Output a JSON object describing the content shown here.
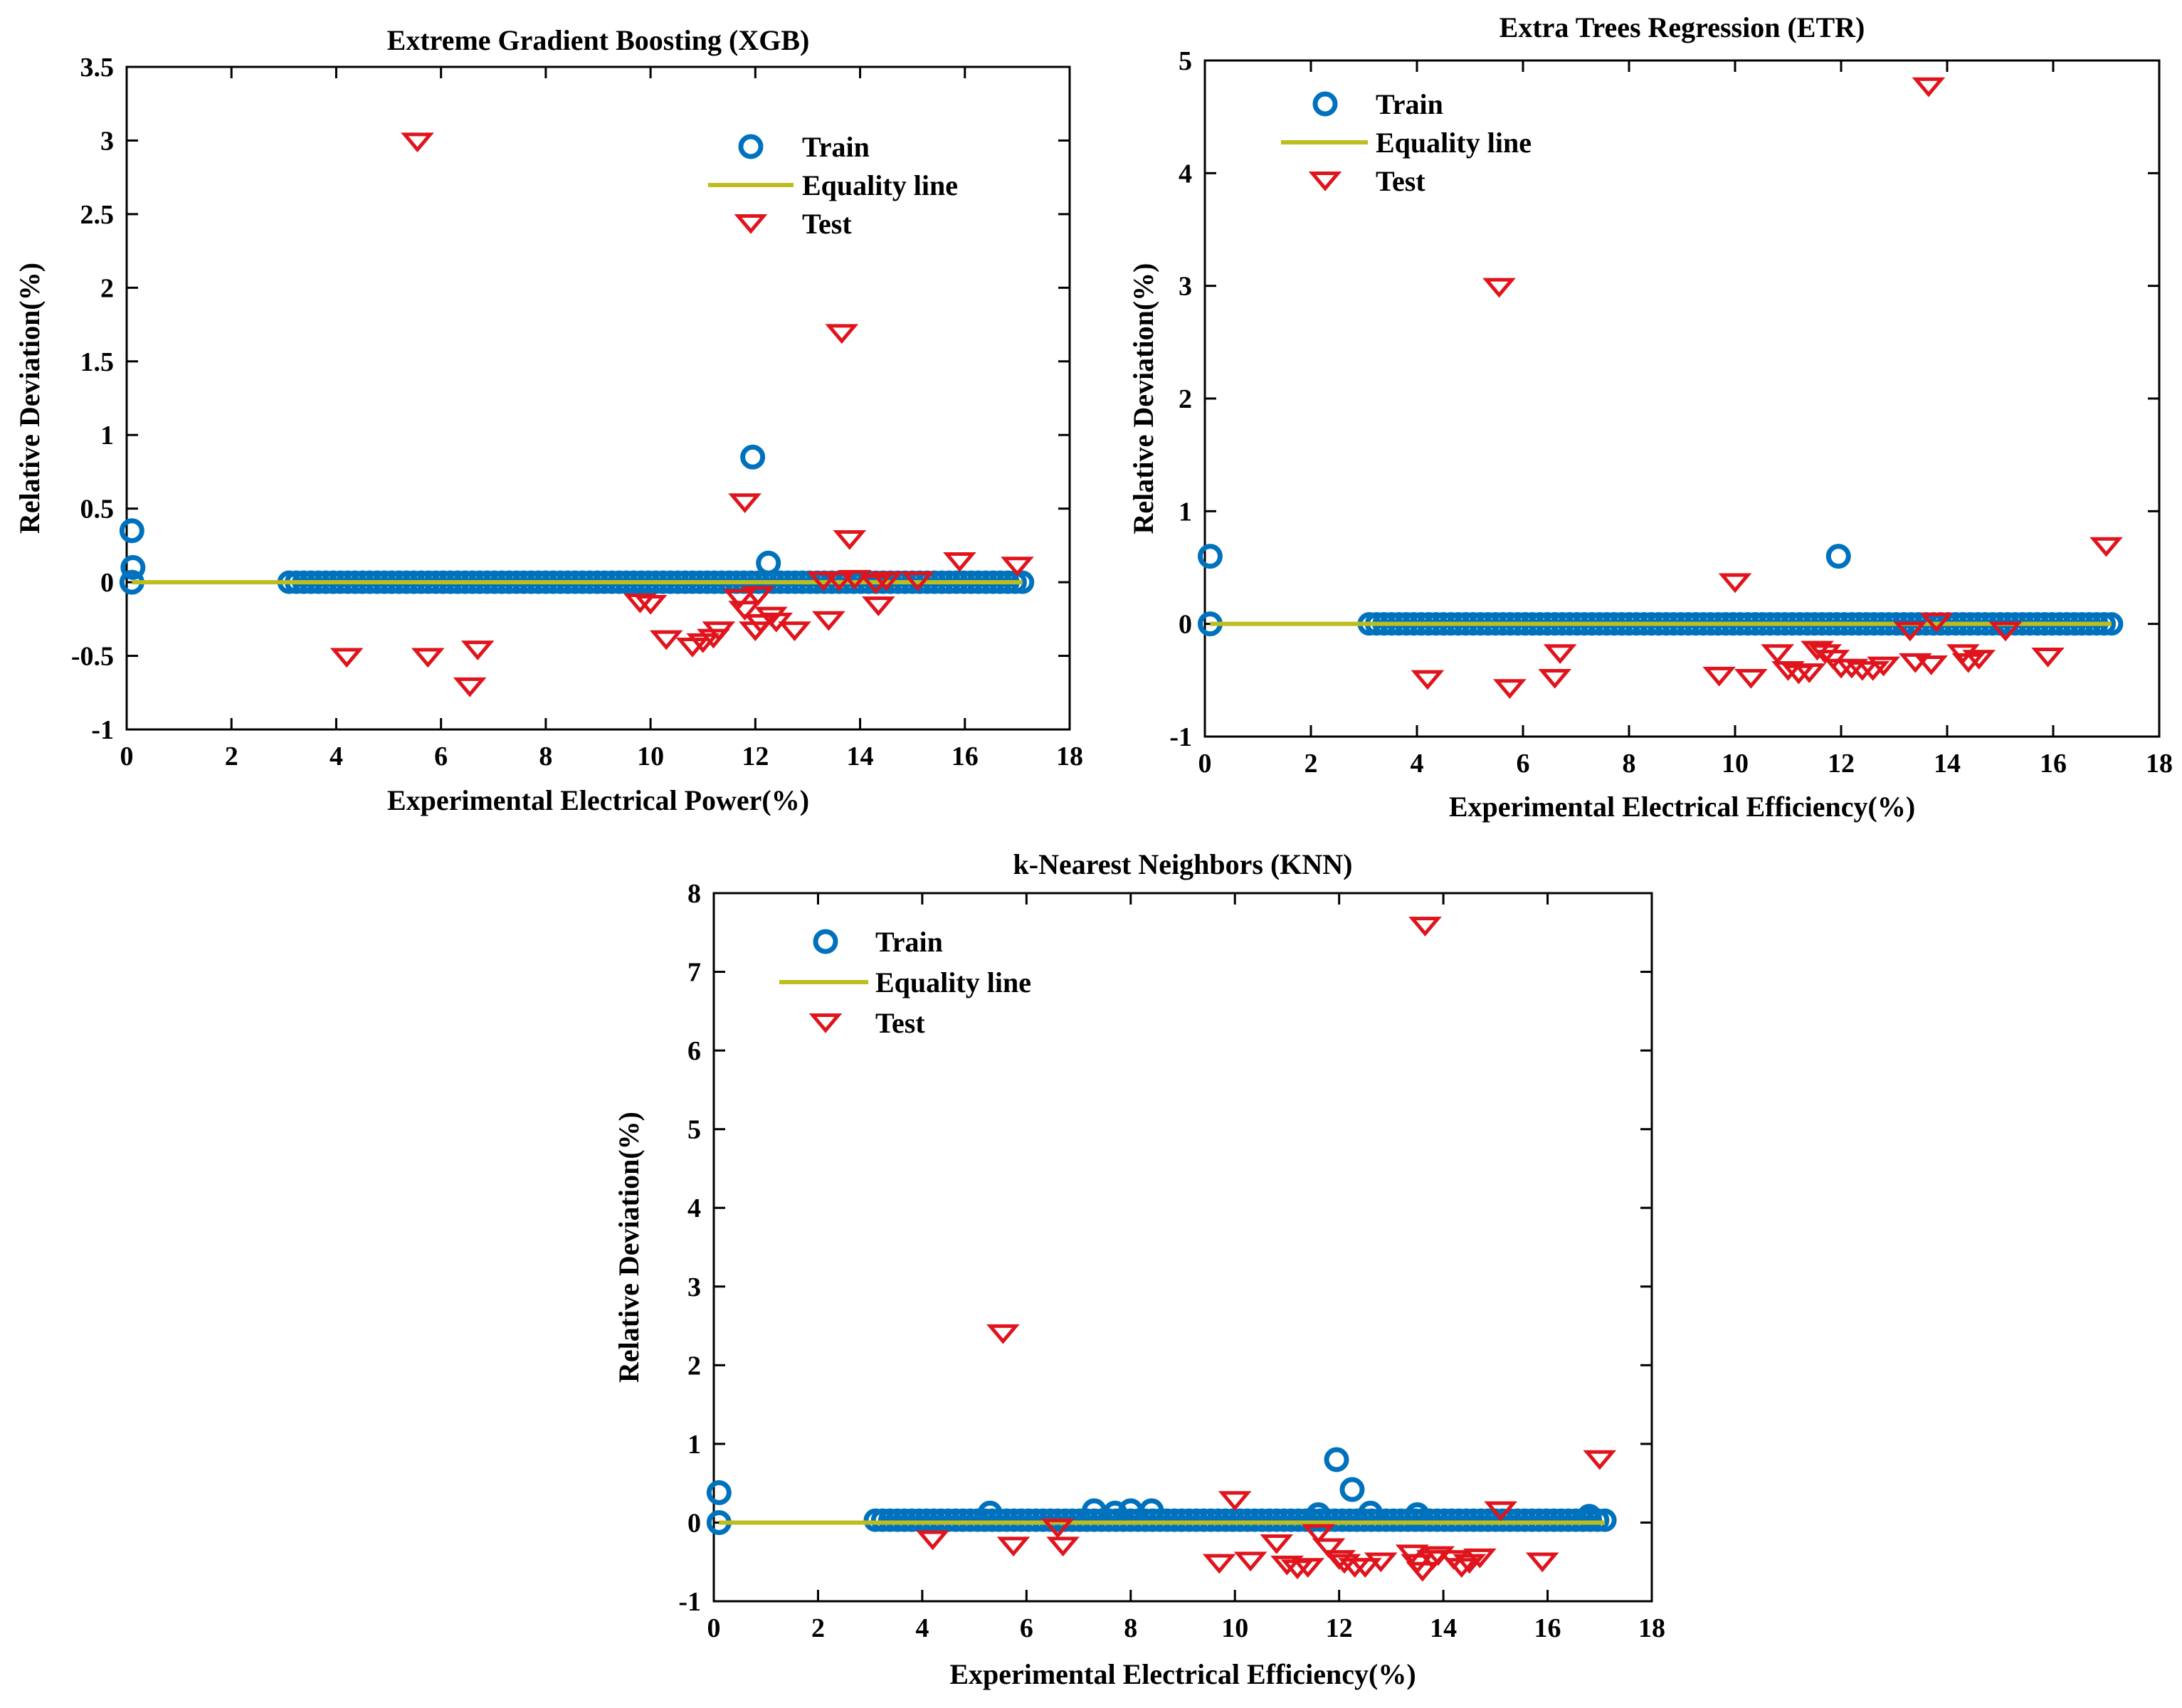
{
  "colors": {
    "train": "#0072BD",
    "equality": "#BDBD1F",
    "test": "#E0141C"
  },
  "chart_data": [
    {
      "type": "scatter",
      "title": "Extreme Gradient Boosting (XGB)",
      "xlabel": "Experimental Electrical Power(%)",
      "ylabel": "Relative Deviation(%)",
      "xlim": [
        0,
        18
      ],
      "ylim": [
        -1,
        3.5
      ],
      "xticks": [
        0,
        2,
        4,
        6,
        8,
        10,
        12,
        14,
        16,
        18
      ],
      "yticks": [
        -1,
        -0.5,
        0,
        0.5,
        1,
        1.5,
        2,
        2.5,
        3,
        3.5
      ],
      "xtick_labels": [
        "0",
        "2",
        "4",
        "6",
        "8",
        "10",
        "12",
        "14",
        "16",
        "18"
      ],
      "ytick_labels": [
        "-1",
        "-0.5",
        "0",
        "0.5",
        "1",
        "1.5",
        "2",
        "2.5",
        "3",
        "3.5"
      ],
      "legend": [
        "Train",
        "Equality line",
        "Test"
      ],
      "legend_position": "top-right",
      "equality_line": {
        "x": [
          0.1,
          17.1
        ],
        "y": [
          0,
          0
        ]
      },
      "train_band": {
        "x": [
          3.1,
          17.1
        ],
        "step": 0.14,
        "y": 0
      },
      "series": [
        {
          "name": "Train",
          "marker": "circle",
          "points": [
            [
              0.1,
              0.35
            ],
            [
              0.12,
              0.1
            ],
            [
              0.1,
              0.0
            ],
            [
              11.95,
              0.85
            ],
            [
              12.25,
              0.13
            ]
          ]
        },
        {
          "name": "Test",
          "marker": "triangle-down",
          "points": [
            [
              5.55,
              3.0
            ],
            [
              13.65,
              1.7
            ],
            [
              11.8,
              0.55
            ],
            [
              13.8,
              0.3
            ],
            [
              15.9,
              0.15
            ],
            [
              17.0,
              0.12
            ],
            [
              13.3,
              0.02
            ],
            [
              13.9,
              0.03
            ],
            [
              14.3,
              0.0
            ],
            [
              14.5,
              0.02
            ],
            [
              15.1,
              0.02
            ],
            [
              13.6,
              0.02
            ],
            [
              11.7,
              -0.1
            ],
            [
              12.05,
              -0.08
            ],
            [
              11.8,
              -0.18
            ],
            [
              12.3,
              -0.22
            ],
            [
              12.1,
              -0.27
            ],
            [
              12.4,
              -0.26
            ],
            [
              11.3,
              -0.32
            ],
            [
              12.0,
              -0.32
            ],
            [
              12.75,
              -0.32
            ],
            [
              13.4,
              -0.25
            ],
            [
              14.35,
              -0.15
            ],
            [
              9.8,
              -0.13
            ],
            [
              10.0,
              -0.14
            ],
            [
              10.3,
              -0.38
            ],
            [
              10.8,
              -0.43
            ],
            [
              11.0,
              -0.4
            ],
            [
              11.2,
              -0.37
            ],
            [
              4.2,
              -0.5
            ],
            [
              5.75,
              -0.5
            ],
            [
              6.7,
              -0.45
            ],
            [
              6.55,
              -0.7
            ]
          ]
        }
      ]
    },
    {
      "type": "scatter",
      "title": "Extra Trees Regression (ETR)",
      "xlabel": "Experimental Electrical Efficiency(%)",
      "ylabel": "Relative Deviation(%)",
      "xlim": [
        0,
        18
      ],
      "ylim": [
        -1,
        5
      ],
      "xticks": [
        0,
        2,
        4,
        6,
        8,
        10,
        12,
        14,
        16,
        18
      ],
      "yticks": [
        -1,
        0,
        1,
        2,
        3,
        4,
        5
      ],
      "xtick_labels": [
        "0",
        "2",
        "4",
        "6",
        "8",
        "10",
        "12",
        "14",
        "16",
        "18"
      ],
      "ytick_labels": [
        "-1",
        "0",
        "1",
        "2",
        "3",
        "4",
        "5"
      ],
      "legend": [
        "Train",
        "Equality line",
        "Test"
      ],
      "legend_position": "top-left",
      "equality_line": {
        "x": [
          0.1,
          17.1
        ],
        "y": [
          0,
          0
        ]
      },
      "train_band": {
        "x": [
          3.1,
          17.1
        ],
        "step": 0.14,
        "y": 0
      },
      "series": [
        {
          "name": "Train",
          "marker": "circle",
          "points": [
            [
              0.1,
              0.6
            ],
            [
              0.1,
              0.0
            ],
            [
              11.95,
              0.6
            ]
          ]
        },
        {
          "name": "Test",
          "marker": "triangle-down",
          "points": [
            [
              13.65,
              4.78
            ],
            [
              5.55,
              3.0
            ],
            [
              17.0,
              0.7
            ],
            [
              10.0,
              0.38
            ],
            [
              13.8,
              0.03
            ],
            [
              13.3,
              -0.05
            ],
            [
              15.1,
              -0.05
            ],
            [
              6.7,
              -0.25
            ],
            [
              10.8,
              -0.25
            ],
            [
              11.55,
              -0.22
            ],
            [
              11.7,
              -0.25
            ],
            [
              11.85,
              -0.3
            ],
            [
              12.0,
              -0.38
            ],
            [
              12.2,
              -0.38
            ],
            [
              12.4,
              -0.4
            ],
            [
              12.6,
              -0.4
            ],
            [
              12.8,
              -0.36
            ],
            [
              13.4,
              -0.33
            ],
            [
              13.7,
              -0.35
            ],
            [
              14.3,
              -0.25
            ],
            [
              14.4,
              -0.33
            ],
            [
              14.6,
              -0.3
            ],
            [
              15.9,
              -0.28
            ],
            [
              11.0,
              -0.4
            ],
            [
              11.2,
              -0.43
            ],
            [
              11.4,
              -0.42
            ],
            [
              9.7,
              -0.45
            ],
            [
              10.3,
              -0.47
            ],
            [
              6.6,
              -0.47
            ],
            [
              4.2,
              -0.48
            ],
            [
              5.75,
              -0.56
            ]
          ]
        }
      ]
    },
    {
      "type": "scatter",
      "title": "k-Nearest Neighbors (KNN)",
      "xlabel": "Experimental Electrical Efficiency(%)",
      "ylabel": "Relative Deviation(%)",
      "xlim": [
        0,
        18
      ],
      "ylim": [
        -1,
        8
      ],
      "xticks": [
        0,
        2,
        4,
        6,
        8,
        10,
        12,
        14,
        16,
        18
      ],
      "yticks": [
        -1,
        0,
        1,
        2,
        3,
        4,
        5,
        6,
        7,
        8
      ],
      "xtick_labels": [
        "0",
        "2",
        "4",
        "6",
        "8",
        "10",
        "12",
        "14",
        "16",
        "18"
      ],
      "ytick_labels": [
        "-1",
        "0",
        "1",
        "2",
        "3",
        "4",
        "5",
        "6",
        "7",
        "8"
      ],
      "legend": [
        "Train",
        "Equality line",
        "Test"
      ],
      "legend_position": "top-left",
      "equality_line": {
        "x": [
          0.1,
          17.1
        ],
        "y": [
          0,
          0
        ]
      },
      "train_band": {
        "x": [
          3.1,
          17.1
        ],
        "step": 0.14,
        "y": 0.03
      },
      "series": [
        {
          "name": "Train",
          "marker": "circle",
          "points": [
            [
              0.1,
              0.38
            ],
            [
              0.1,
              0.0
            ],
            [
              11.95,
              0.8
            ],
            [
              12.25,
              0.42
            ],
            [
              12.6,
              0.12
            ],
            [
              7.3,
              0.15
            ],
            [
              8.0,
              0.15
            ],
            [
              8.4,
              0.15
            ],
            [
              7.7,
              0.12
            ],
            [
              5.3,
              0.12
            ],
            [
              11.6,
              0.1
            ],
            [
              13.5,
              0.1
            ],
            [
              16.8,
              0.08
            ]
          ]
        },
        {
          "name": "Test",
          "marker": "triangle-down",
          "points": [
            [
              13.65,
              7.6
            ],
            [
              5.55,
              2.42
            ],
            [
              17.0,
              0.82
            ],
            [
              10.0,
              0.3
            ],
            [
              15.1,
              0.17
            ],
            [
              6.6,
              -0.05
            ],
            [
              11.6,
              -0.12
            ],
            [
              4.2,
              -0.2
            ],
            [
              5.75,
              -0.28
            ],
            [
              6.7,
              -0.28
            ],
            [
              10.8,
              -0.25
            ],
            [
              11.8,
              -0.3
            ],
            [
              12.0,
              -0.45
            ],
            [
              12.1,
              -0.5
            ],
            [
              12.3,
              -0.55
            ],
            [
              12.5,
              -0.55
            ],
            [
              12.8,
              -0.48
            ],
            [
              13.4,
              -0.38
            ],
            [
              13.5,
              -0.5
            ],
            [
              13.6,
              -0.6
            ],
            [
              13.8,
              -0.45
            ],
            [
              13.9,
              -0.4
            ],
            [
              14.2,
              -0.45
            ],
            [
              14.35,
              -0.55
            ],
            [
              14.5,
              -0.5
            ],
            [
              14.7,
              -0.43
            ],
            [
              15.9,
              -0.48
            ],
            [
              9.7,
              -0.5
            ],
            [
              10.3,
              -0.47
            ],
            [
              11.0,
              -0.52
            ],
            [
              11.2,
              -0.57
            ],
            [
              11.4,
              -0.55
            ]
          ]
        }
      ]
    }
  ]
}
